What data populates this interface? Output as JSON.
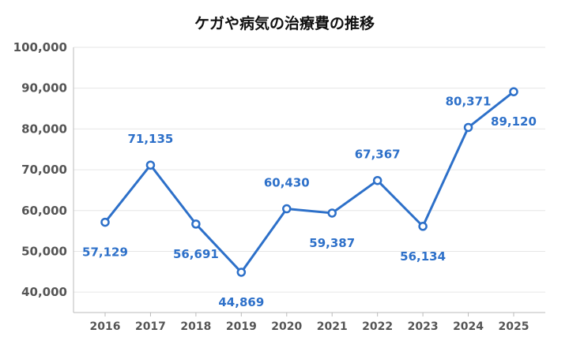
{
  "chart_data": {
    "type": "line",
    "title": "ケガや病気の治療費の推移",
    "xlabel": "",
    "ylabel": "",
    "categories": [
      "2016",
      "2017",
      "2018",
      "2019",
      "2020",
      "2021",
      "2022",
      "2023",
      "2024",
      "2025"
    ],
    "series": [
      {
        "values": [
          57129,
          71135,
          56691,
          44869,
          60430,
          59387,
          67367,
          56134,
          80371,
          89120
        ],
        "labels": [
          "57,129",
          "71,135",
          "56,691",
          "44,869",
          "60,430",
          "59,387",
          "67,367",
          "56,134",
          "80,371",
          "89,120"
        ]
      }
    ],
    "label_side": [
      "below",
      "above",
      "below",
      "below",
      "above",
      "below",
      "above",
      "below",
      "above",
      "below"
    ],
    "ylim": [
      35000,
      100000
    ],
    "yticks": [
      40000,
      50000,
      60000,
      70000,
      80000,
      90000,
      100000
    ],
    "ytick_labels": [
      "40,000",
      "50,000",
      "60,000",
      "70,000",
      "80,000",
      "90,000",
      "100,000"
    ],
    "grid": true,
    "legend": "none",
    "colors": {
      "line": "#2d70c9",
      "marker_fill": "#ffffff",
      "label": "#2d70c9"
    }
  }
}
